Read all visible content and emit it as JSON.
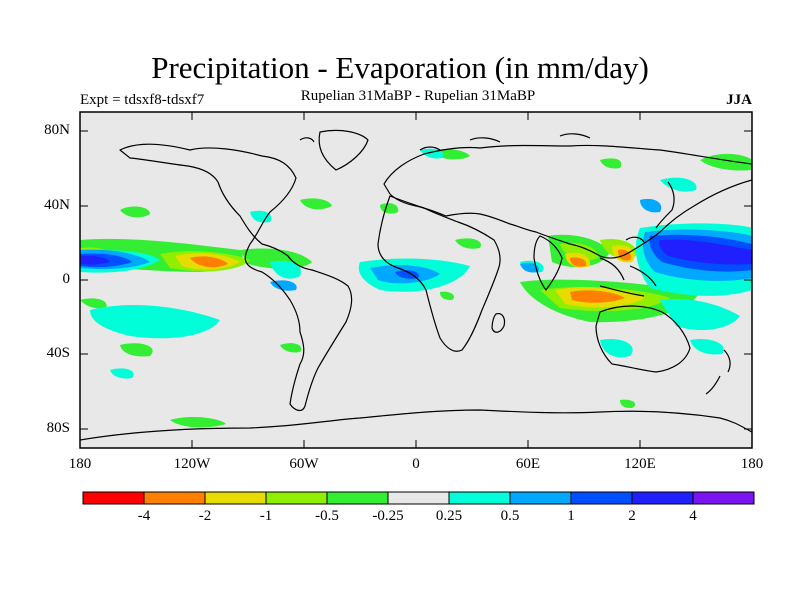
{
  "title": "Precipitation - Evaporation (in mm/day)",
  "experiment": "Expt = tdsxf8-tdsxf7",
  "subtitle": "Rupelian  31MaBP - Rupelian  31MaBP",
  "season": "JJA",
  "lat_labels": [
    "80N",
    "40N",
    "0",
    "40S",
    "80S"
  ],
  "lon_labels": [
    "180",
    "120W",
    "60W",
    "0",
    "60E",
    "120E",
    "180"
  ],
  "colorbar": {
    "colors": [
      "#ff0000",
      "#ff8000",
      "#e6dc00",
      "#90ee00",
      "#33ee33",
      "#e8e8e8",
      "#00ffd8",
      "#00a8ff",
      "#0050ff",
      "#2020ff",
      "#7a14f0"
    ],
    "labels": [
      "-4",
      "-2",
      "-1",
      "-0.5",
      "-0.25",
      "0.25",
      "0.5",
      "1",
      "2",
      "4"
    ]
  }
}
